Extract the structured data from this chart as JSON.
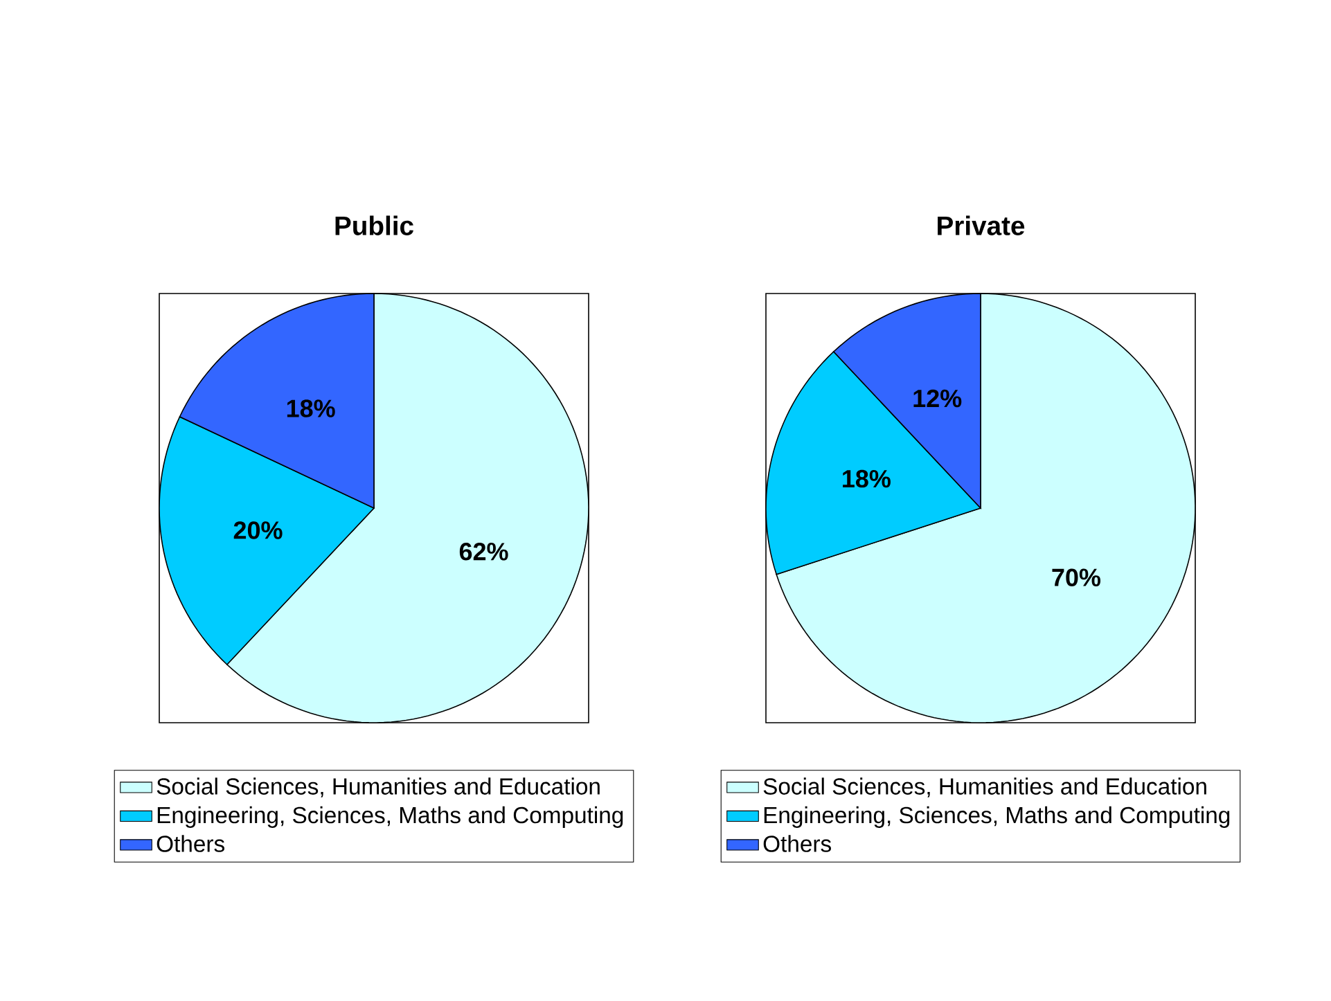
{
  "chart_data": [
    {
      "type": "pie",
      "title": "Public",
      "categories": [
        "Social Sciences, Humanities and Education",
        "Engineering, Sciences, Maths and Computing",
        "Others"
      ],
      "values": [
        62,
        20,
        18
      ],
      "colors": [
        "#ccffff",
        "#00ccff",
        "#3366ff"
      ],
      "value_labels": [
        "62%",
        "20%",
        "18%"
      ],
      "legend": "bottom"
    },
    {
      "type": "pie",
      "title": "Private",
      "categories": [
        "Social Sciences, Humanities and Education",
        "Engineering, Sciences, Maths and Computing",
        "Others"
      ],
      "values": [
        70,
        18,
        12
      ],
      "colors": [
        "#ccffff",
        "#00ccff",
        "#3366ff"
      ],
      "value_labels": [
        "70%",
        "18%",
        "12%"
      ],
      "legend": "bottom"
    }
  ]
}
